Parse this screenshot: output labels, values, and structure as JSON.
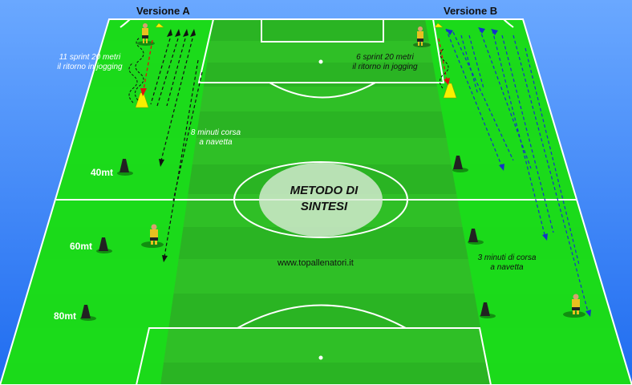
{
  "title": "METODO DI SINTESI",
  "website": "www.topallenatori.it",
  "versions": [
    {
      "label": "Versione A",
      "sprint_note": [
        "11 sprint 20 metri",
        "il ritorno in jogging"
      ],
      "shuttle_note": [
        "8 minuti corsa",
        "a navetta"
      ]
    },
    {
      "label": "Versione B",
      "sprint_note": [
        "6 sprint 20 metri",
        "il ritorno in jogging"
      ],
      "shuttle_note": [
        "3 minuti di corsa",
        "a navetta"
      ]
    }
  ],
  "distance_markers": [
    "40mt",
    "60mt",
    "80mt"
  ],
  "colors": {
    "sky": "#3a86ff",
    "pitch_light": "#35cc2b",
    "pitch_dark": "#27a820",
    "zone": "#18e018",
    "lines": "#ffffff",
    "arrow_black": "#111111",
    "arrow_blue": "#1533c8",
    "arrow_red": "#e01010",
    "cone": "#222222",
    "marker": "#f6f000"
  },
  "icons": [
    "cone-icon",
    "player-icon",
    "marker-icon"
  ]
}
